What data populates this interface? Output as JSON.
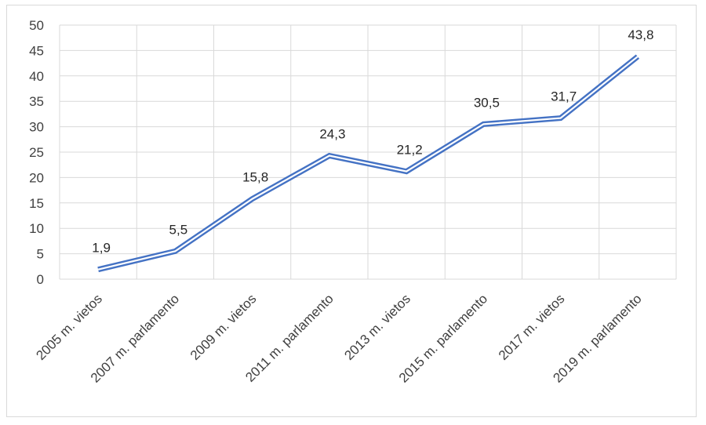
{
  "chart_data": {
    "type": "line",
    "categories": [
      "2005 m. vietos",
      "2007 m. parlamento",
      "2009 m. vietos",
      "2011 m. parlamento",
      "2013 m. vietos",
      "2015 m. parlamento",
      "2017 m. vietos",
      "2019 m. parlamento"
    ],
    "series": [
      {
        "values": [
          1.9,
          5.5,
          15.8,
          24.3,
          21.2,
          30.5,
          31.7,
          43.8
        ],
        "labels": [
          "1,9",
          "5,5",
          "15,8",
          "24,3",
          "21,2",
          "30,5",
          "31,7",
          "43,8"
        ],
        "color": "#4472c4"
      }
    ],
    "title": "",
    "xlabel": "",
    "ylabel": "",
    "ylim": [
      0,
      50
    ],
    "yticks": [
      "0",
      "5",
      "10",
      "15",
      "20",
      "25",
      "30",
      "35",
      "40",
      "45",
      "50"
    ],
    "grid": true,
    "legend": "none",
    "line_style": "double"
  }
}
